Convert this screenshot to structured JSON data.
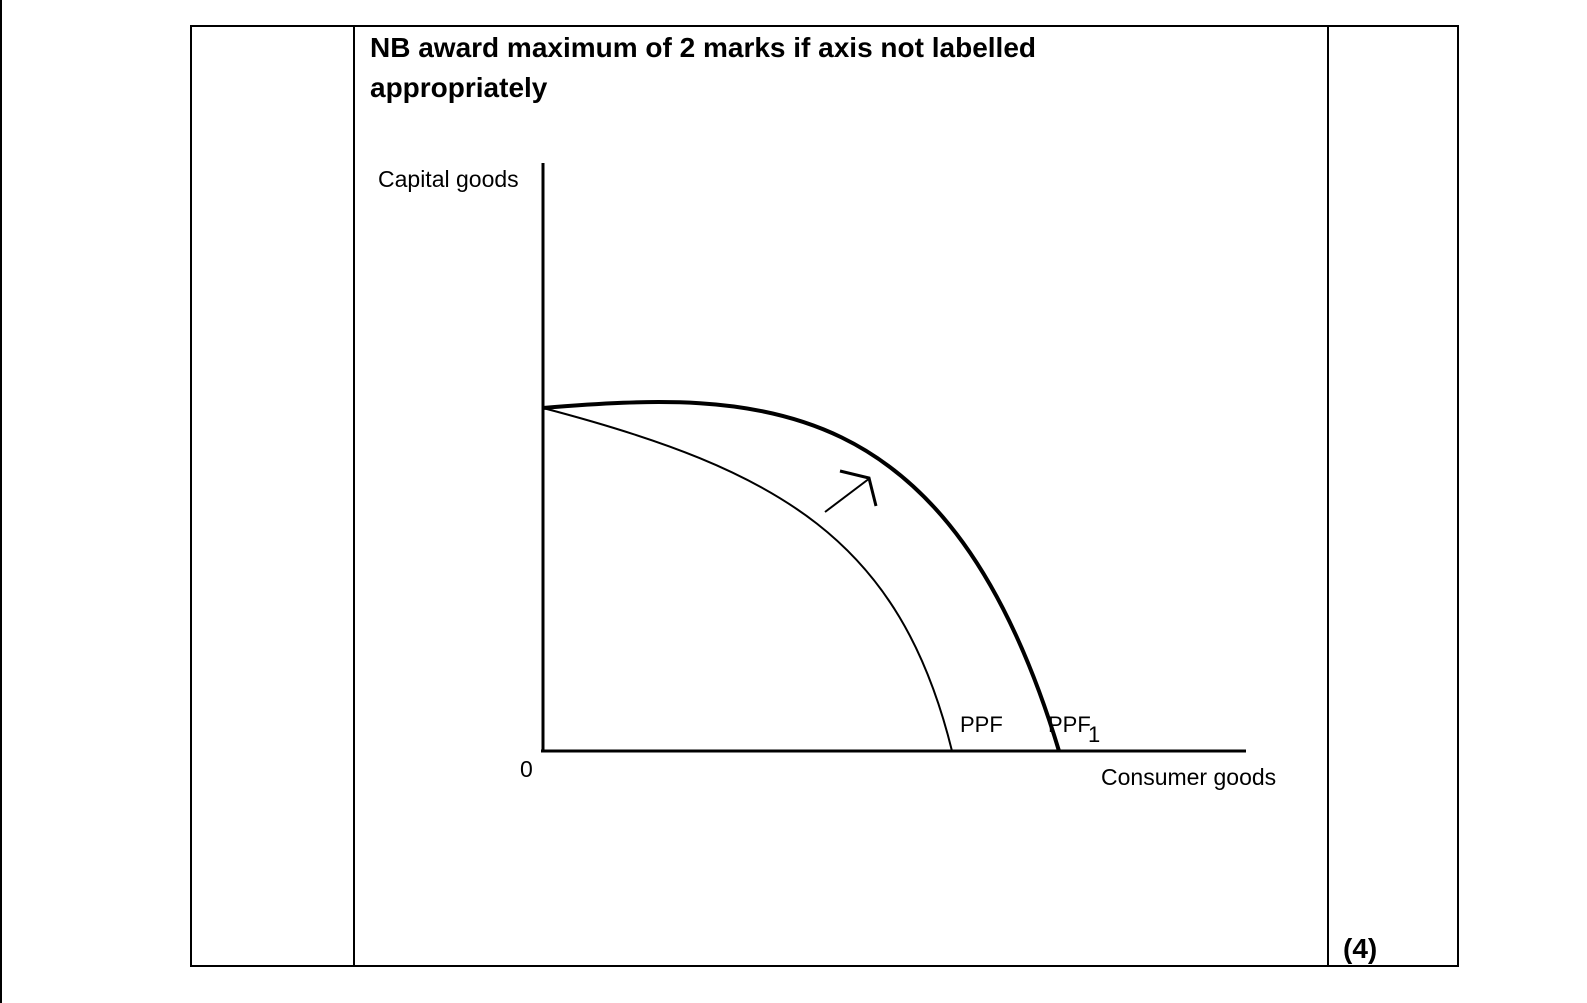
{
  "note": {
    "line1": "NB award maximum of 2 marks if axis not labelled",
    "line2": "appropriately"
  },
  "diagram": {
    "y_axis_label": "Capital goods",
    "x_axis_label": "Consumer goods",
    "origin_label": "0",
    "curves": [
      {
        "label": "PPF"
      },
      {
        "label": "PPF",
        "subscript": "1"
      }
    ]
  },
  "marks": "(4)"
}
